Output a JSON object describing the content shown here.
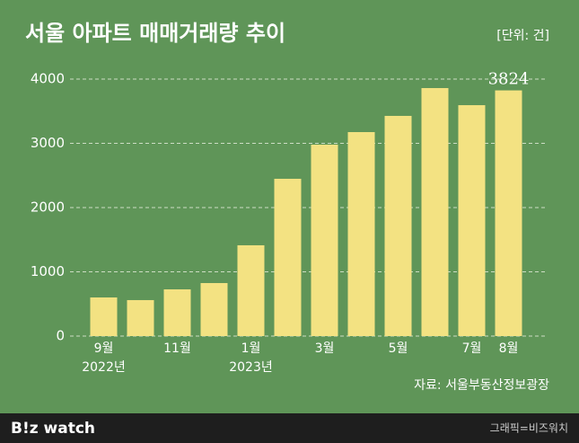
{
  "chart_data": {
    "type": "bar",
    "title": "서울 아파트 매매거래량 추이",
    "unit": "[단위: 건]",
    "categories": [
      "9월",
      null,
      "11월",
      null,
      "1월",
      null,
      "3월",
      null,
      "5월",
      null,
      "7월",
      "8월"
    ],
    "category_years": [
      "2022년",
      null,
      null,
      null,
      "2023년",
      null,
      null,
      null,
      null,
      null,
      null,
      null
    ],
    "values": [
      601,
      560,
      727,
      825,
      1413,
      2448,
      2979,
      3175,
      3427,
      3860,
      3594,
      3824
    ],
    "value_labels": [
      null,
      null,
      null,
      null,
      null,
      null,
      null,
      null,
      null,
      null,
      null,
      "3824"
    ],
    "color": "#f3e282",
    "ylim": [
      0,
      4000
    ],
    "yticks": [
      0,
      1000,
      2000,
      3000,
      4000
    ],
    "grid": true,
    "source": "자료: 서울부동산정보광장"
  },
  "footer": {
    "logo": "B!z watch",
    "credit": "그래픽=비즈워치"
  }
}
